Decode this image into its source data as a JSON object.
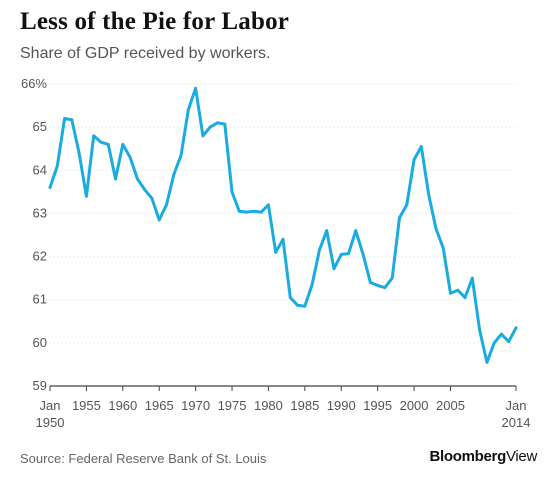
{
  "header": {
    "title": "Less of the Pie for Labor",
    "subtitle": "Share of GDP received by workers."
  },
  "footer": {
    "source": "Source: Federal Reserve Bank of St. Louis",
    "brand_bold": "Bloomberg",
    "brand_light": "View"
  },
  "chart_data": {
    "type": "line",
    "title": "Less of the Pie for Labor",
    "subtitle": "Share of GDP received by workers.",
    "xlabel": "",
    "ylabel": "",
    "xlim": [
      1950,
      2014
    ],
    "ylim": [
      59,
      66
    ],
    "grid": true,
    "color": "#1aabe0",
    "y_ticks": [
      {
        "value": 66,
        "label": "66%"
      },
      {
        "value": 65,
        "label": "65"
      },
      {
        "value": 64,
        "label": "64"
      },
      {
        "value": 63,
        "label": "63"
      },
      {
        "value": 62,
        "label": "62"
      },
      {
        "value": 61,
        "label": "61"
      },
      {
        "value": 60,
        "label": "60"
      },
      {
        "value": 59,
        "label": "59"
      }
    ],
    "x_ticks": [
      {
        "value": 1950,
        "label": "Jan",
        "label2": "1950"
      },
      {
        "value": 1955,
        "label": "1955"
      },
      {
        "value": 1960,
        "label": "1960"
      },
      {
        "value": 1965,
        "label": "1965"
      },
      {
        "value": 1970,
        "label": "1970"
      },
      {
        "value": 1975,
        "label": "1975"
      },
      {
        "value": 1980,
        "label": "1980"
      },
      {
        "value": 1985,
        "label": "1985"
      },
      {
        "value": 1990,
        "label": "1990"
      },
      {
        "value": 1995,
        "label": "1995"
      },
      {
        "value": 2000,
        "label": "2000"
      },
      {
        "value": 2005,
        "label": "2005"
      },
      {
        "value": 2014,
        "label": "Jan",
        "label2": "2014"
      }
    ],
    "series": [
      {
        "x": [
          1950,
          1951,
          1952,
          1953,
          1954,
          1955,
          1956,
          1957,
          1958,
          1959,
          1960,
          1961,
          1962,
          1963,
          1964,
          1965,
          1966,
          1967,
          1968,
          1969,
          1970,
          1971,
          1972,
          1973,
          1974,
          1975,
          1976,
          1977,
          1978,
          1979,
          1980,
          1981,
          1982,
          1983,
          1984,
          1985,
          1986,
          1987,
          1988,
          1989,
          1990,
          1991,
          1992,
          1993,
          1994,
          1995,
          1996,
          1997,
          1998,
          1999,
          2000,
          2001,
          2002,
          2003,
          2004,
          2005,
          2006,
          2007,
          2008,
          2009,
          2010,
          2011,
          2012,
          2013,
          2014
        ],
        "values": [
          63.6,
          64.1,
          65.2,
          65.17,
          64.4,
          63.4,
          64.8,
          64.65,
          64.6,
          63.8,
          64.6,
          64.3,
          63.8,
          63.55,
          63.35,
          62.85,
          63.2,
          63.9,
          64.35,
          65.4,
          65.9,
          64.8,
          65.0,
          65.1,
          65.07,
          63.5,
          63.05,
          63.03,
          63.05,
          63.03,
          63.2,
          62.1,
          62.4,
          61.05,
          60.87,
          60.85,
          61.35,
          62.15,
          62.6,
          61.72,
          62.05,
          62.07,
          62.6,
          62.05,
          61.4,
          61.33,
          61.28,
          61.5,
          62.9,
          63.2,
          64.25,
          64.55,
          63.45,
          62.65,
          62.2,
          61.15,
          61.22,
          61.05,
          61.5,
          60.3,
          59.55,
          60.0,
          60.2,
          60.03,
          60.35
        ]
      }
    ]
  }
}
